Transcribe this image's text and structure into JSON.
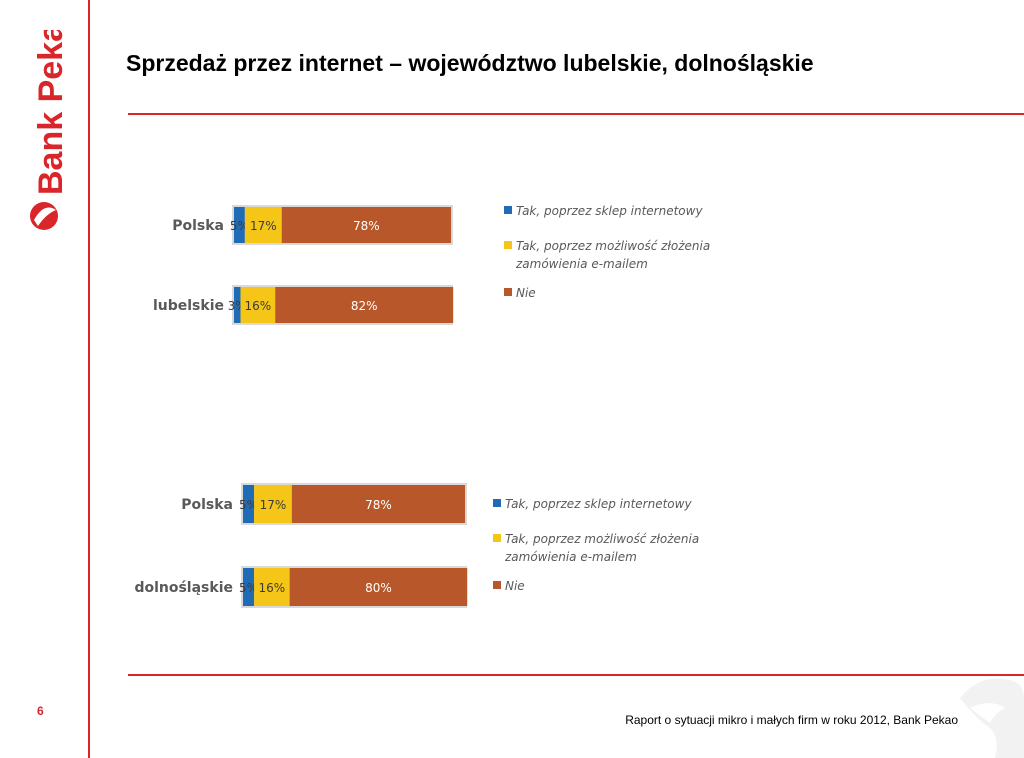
{
  "brand": {
    "name": "Bank Pekao"
  },
  "slide": {
    "title": "Sprzedaż przez internet – województwo lubelskie, dolnośląskie",
    "page_number": "6",
    "footer": "Raport  o sytuacji mikro i małych firm w roku 2012, Bank Pekao"
  },
  "colors": {
    "accent": "#d9262b",
    "series": [
      "#1f6bb5",
      "#f5c518",
      "#b8582a"
    ]
  },
  "chart_data": [
    {
      "type": "bar",
      "stacked": true,
      "orientation": "horizontal",
      "categories": [
        "Polska",
        "lubelskie"
      ],
      "series": [
        {
          "name": "Tak, poprzez sklep internetowy",
          "values": [
            5,
            3
          ],
          "labels": [
            "5%",
            "3%"
          ]
        },
        {
          "name": "Tak, poprzez możliwość złożenia zamówienia e-mailem",
          "values": [
            17,
            16
          ],
          "labels": [
            "17%",
            "16%"
          ]
        },
        {
          "name": "Nie",
          "values": [
            78,
            82
          ],
          "labels": [
            "78%",
            "82%"
          ]
        }
      ],
      "legend": [
        "Tak, poprzez sklep internetowy",
        "Tak, poprzez możliwość złożenia|zamówienia e-mailem",
        "Nie"
      ],
      "legend_position": "right",
      "xlim": [
        0,
        100
      ]
    },
    {
      "type": "bar",
      "stacked": true,
      "orientation": "horizontal",
      "categories": [
        "Polska",
        "dolnośląskie"
      ],
      "series": [
        {
          "name": "Tak, poprzez sklep internetowy",
          "values": [
            5,
            5
          ],
          "labels": [
            "5%",
            "5%"
          ]
        },
        {
          "name": "Tak, poprzez możliwość złożenia zamówienia e-mailem",
          "values": [
            17,
            16
          ],
          "labels": [
            "17%",
            "16%"
          ]
        },
        {
          "name": "Nie",
          "values": [
            78,
            80
          ],
          "labels": [
            "78%",
            "80%"
          ]
        }
      ],
      "legend": [
        "Tak, poprzez sklep internetowy",
        "Tak, poprzez możliwość złożenia|zamówienia e-mailem",
        "Nie"
      ],
      "legend_position": "right",
      "xlim": [
        0,
        100
      ]
    }
  ]
}
